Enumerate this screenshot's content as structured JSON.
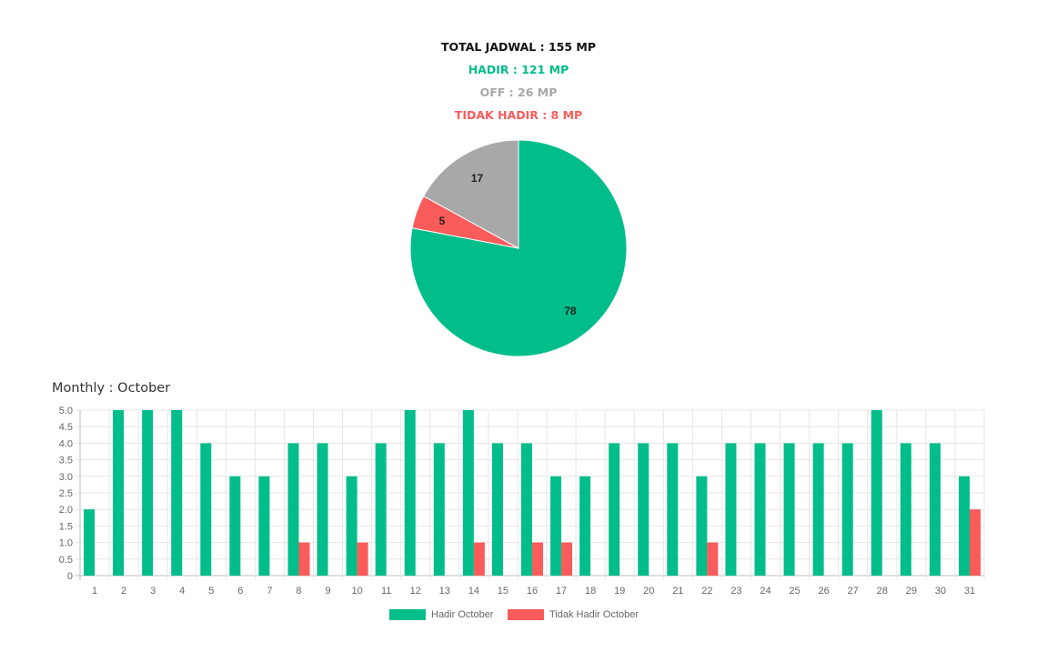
{
  "summary": {
    "total": "TOTAL JADWAL : 155 MP",
    "hadir": "HADIR : 121 MP",
    "off": "OFF : 26 MP",
    "tidak_hadir": "TIDAK HADIR : 8 MP"
  },
  "colors": {
    "hadir": "#00bd8a",
    "off": "#a8a8a8",
    "tidak_hadir": "#fa5b5b",
    "total": "#111111",
    "grid": "#e6e6e6",
    "axis": "#bdbdbd",
    "tick": "#666666"
  },
  "chart_data": [
    {
      "type": "pie",
      "labels": [
        "",
        "",
        ""
      ],
      "values": [
        78,
        5,
        17
      ],
      "data_labels": [
        "78",
        "5",
        "17"
      ],
      "slice_colors": [
        "#00bd8a",
        "#fa5b5b",
        "#a8a8a8"
      ]
    },
    {
      "type": "bar",
      "title": "Monthly : October",
      "categories": [
        "1",
        "2",
        "3",
        "4",
        "5",
        "6",
        "7",
        "8",
        "9",
        "10",
        "11",
        "12",
        "13",
        "14",
        "15",
        "16",
        "17",
        "18",
        "19",
        "20",
        "21",
        "22",
        "23",
        "24",
        "25",
        "26",
        "27",
        "28",
        "29",
        "30",
        "31"
      ],
      "series": [
        {
          "name": "Hadir October",
          "color": "#00bd8a",
          "values": [
            2,
            5,
            5,
            5,
            4,
            3,
            3,
            4,
            4,
            3,
            4,
            5,
            4,
            5,
            4,
            4,
            3,
            3,
            4,
            4,
            4,
            3,
            4,
            4,
            4,
            4,
            4,
            5,
            4,
            4,
            3
          ]
        },
        {
          "name": "Tidak Hadir October",
          "color": "#fa5b5b",
          "values": [
            0,
            0,
            0,
            0,
            0,
            0,
            0,
            1,
            0,
            1,
            0,
            0,
            0,
            1,
            0,
            1,
            1,
            0,
            0,
            0,
            0,
            1,
            0,
            0,
            0,
            0,
            0,
            0,
            0,
            0,
            2
          ]
        }
      ],
      "ylim": [
        0,
        5
      ],
      "yticks": [
        "0",
        "0.5",
        "1.0",
        "1.5",
        "2.0",
        "2.5",
        "3.0",
        "3.5",
        "4.0",
        "4.5",
        "5.0"
      ],
      "grid": true,
      "legend": "bottom"
    }
  ]
}
